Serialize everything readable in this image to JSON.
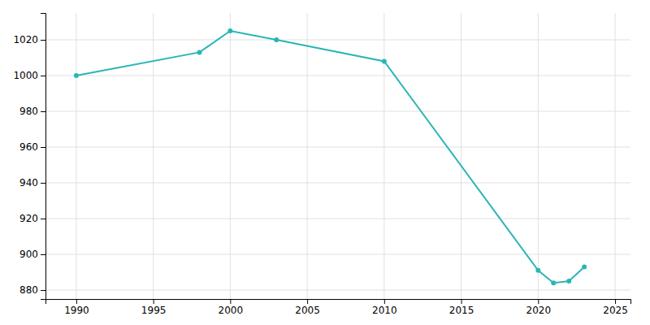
{
  "chart_data": {
    "type": "line",
    "x": [
      1990,
      1998,
      2000,
      2003,
      2010,
      2020,
      2021,
      2022,
      2023
    ],
    "values": [
      1000,
      1013,
      1025,
      1020,
      1008,
      891,
      884,
      885,
      893
    ],
    "color": "#2ab5b5",
    "marker": "circle",
    "xlim": [
      1988,
      2026
    ],
    "ylim": [
      875,
      1035
    ],
    "xticks": [
      1990,
      1995,
      2000,
      2005,
      2010,
      2015,
      2020,
      2025
    ],
    "yticks": [
      880,
      900,
      920,
      940,
      960,
      980,
      1000,
      1020
    ],
    "grid": true
  }
}
